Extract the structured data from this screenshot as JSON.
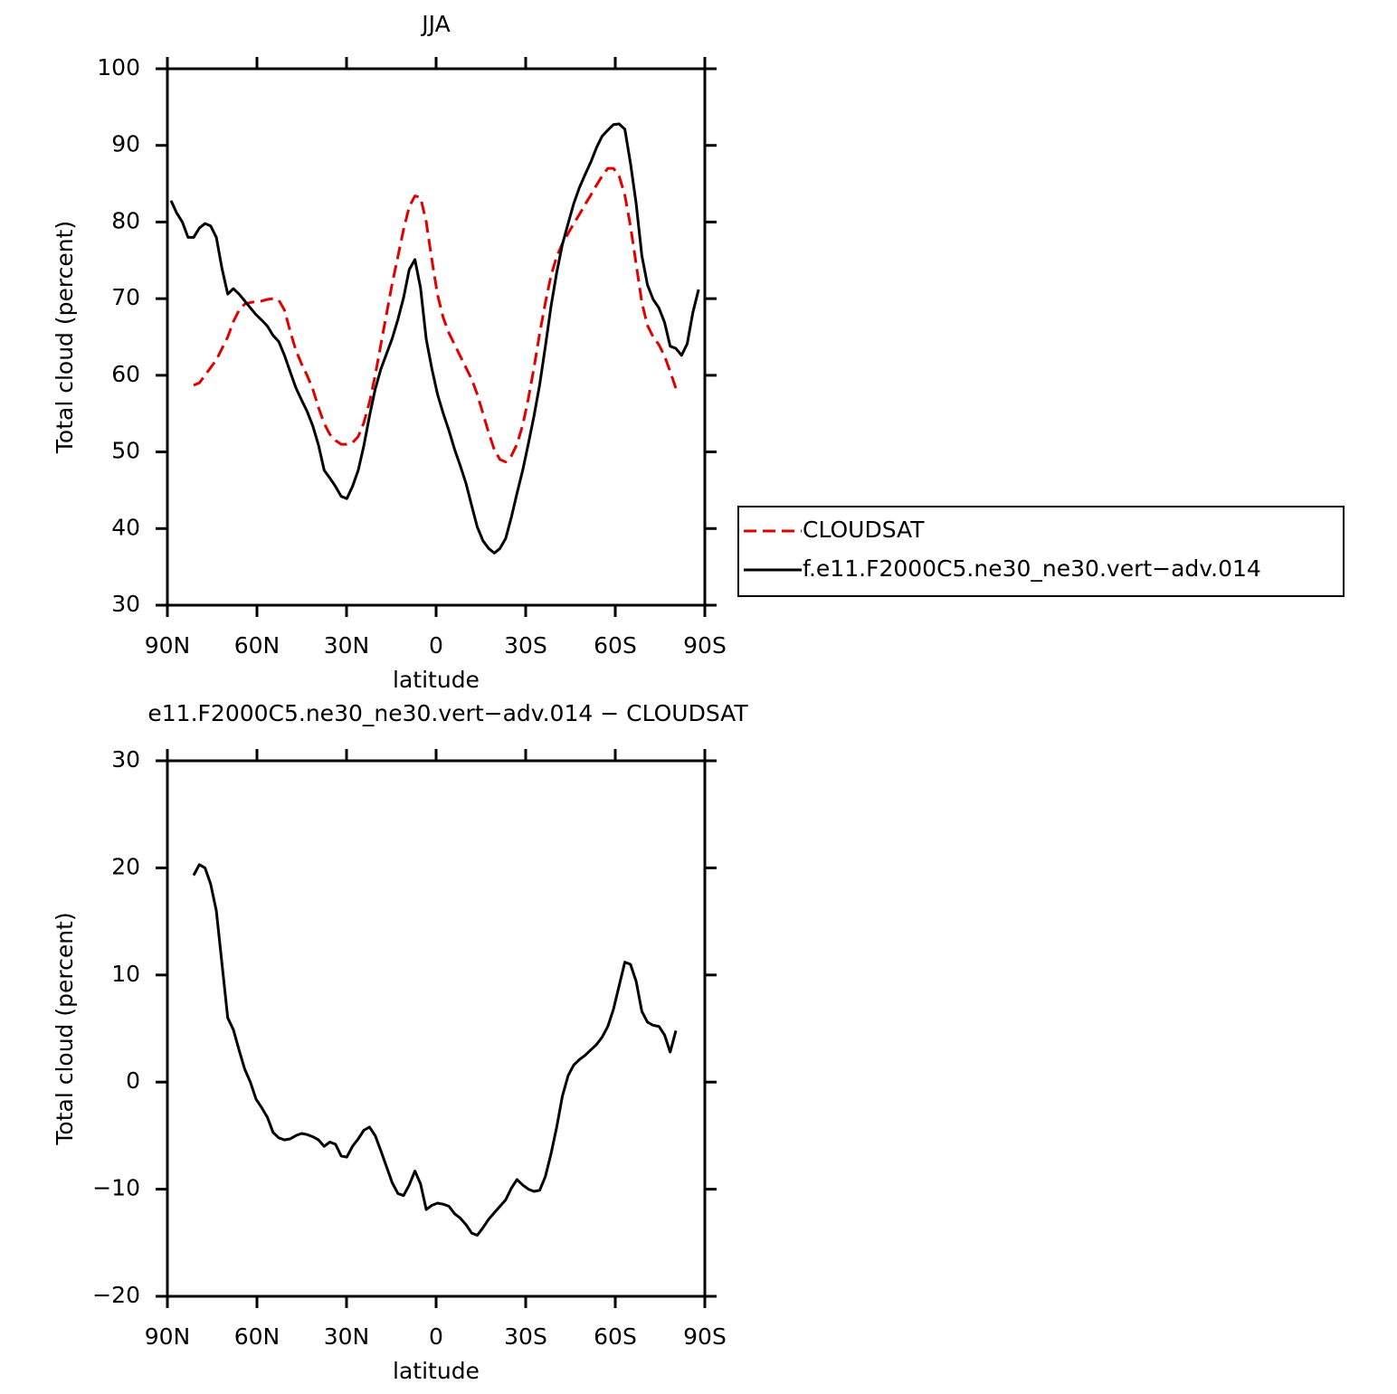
{
  "chart_data": [
    {
      "type": "line",
      "title": "JJA",
      "xlabel": "latitude",
      "ylabel": "Total cloud (percent)",
      "x": [
        88.8,
        86.9,
        85.0,
        83.1,
        81.2,
        79.3,
        77.4,
        75.5,
        73.6,
        71.7,
        69.8,
        67.9,
        66.0,
        64.1,
        62.2,
        60.3,
        58.4,
        56.5,
        54.6,
        52.7,
        50.8,
        48.9,
        47.0,
        45.1,
        43.2,
        41.3,
        39.4,
        37.5,
        35.6,
        33.7,
        31.8,
        29.9,
        28.0,
        26.1,
        24.2,
        22.3,
        20.4,
        18.5,
        16.6,
        14.7,
        12.8,
        10.9,
        9.0,
        7.1,
        5.2,
        3.3,
        1.4,
        -0.5,
        -2.4,
        -4.3,
        -6.2,
        -8.1,
        -10.0,
        -11.9,
        -13.8,
        -15.7,
        -17.6,
        -19.5,
        -21.4,
        -23.3,
        -25.2,
        -27.1,
        -29.0,
        -30.9,
        -32.8,
        -34.7,
        -36.6,
        -38.5,
        -40.4,
        -42.3,
        -44.2,
        -46.1,
        -48.0,
        -49.9,
        -51.8,
        -53.7,
        -55.6,
        -57.5,
        -59.4,
        -61.3,
        -63.2,
        -65.1,
        -67.0,
        -68.9,
        -70.8,
        -72.7,
        -74.6,
        -76.5,
        -78.4,
        -80.3,
        -82.2,
        -84.1,
        -86.0,
        -87.9
      ],
      "series": [
        {
          "name": "CLOUDSAT",
          "color": "#e00000",
          "dashed": true,
          "values": [
            null,
            null,
            null,
            null,
            58.7,
            59.0,
            60.0,
            61.0,
            62.0,
            63.5,
            65.0,
            67.0,
            68.5,
            69.3,
            69.5,
            69.6,
            69.7,
            69.9,
            70.0,
            69.8,
            68.5,
            65.8,
            63.3,
            61.5,
            60.0,
            58.2,
            55.8,
            53.7,
            52.3,
            51.5,
            51.0,
            51.0,
            51.2,
            52.0,
            53.8,
            56.5,
            60.0,
            64.0,
            68.0,
            72.0,
            75.5,
            79.0,
            82.0,
            83.4,
            83.2,
            80.0,
            75.0,
            70.5,
            67.5,
            65.5,
            64.0,
            62.5,
            61.0,
            59.5,
            57.5,
            55.0,
            52.5,
            50.3,
            49.0,
            48.7,
            49.5,
            51.0,
            53.5,
            57.0,
            61.0,
            65.5,
            69.5,
            73.0,
            75.5,
            77.2,
            78.5,
            79.8,
            81.0,
            82.3,
            83.5,
            84.8,
            86.0,
            87.0,
            87.0,
            86.0,
            83.5,
            79.5,
            74.5,
            69.5,
            66.5,
            65.0,
            64.0,
            62.5,
            60.5,
            58.3,
            null,
            null,
            null,
            null
          ]
        },
        {
          "name": "f.e11.F2000C5.ne30_ne30.vert−adv.014",
          "color": "#000000",
          "dashed": false,
          "values": [
            82.8,
            81.2,
            80.0,
            78.0,
            78.0,
            79.2,
            79.8,
            79.5,
            78.0,
            73.9,
            70.6,
            71.3,
            70.6,
            69.7,
            68.8,
            67.9,
            67.2,
            66.4,
            65.2,
            64.4,
            62.6,
            60.5,
            58.4,
            56.8,
            55.3,
            53.4,
            50.9,
            47.6,
            46.6,
            45.5,
            44.2,
            43.9,
            45.5,
            47.6,
            50.8,
            54.7,
            58.2,
            60.8,
            62.8,
            64.8,
            67.3,
            70.1,
            73.8,
            75.1,
            71.4,
            64.7,
            60.8,
            57.5,
            55.0,
            52.8,
            50.3,
            48.2,
            45.9,
            43.0,
            40.2,
            38.4,
            37.4,
            36.8,
            37.4,
            38.7,
            41.5,
            44.6,
            47.6,
            51.1,
            54.7,
            58.8,
            63.8,
            69.0,
            73.4,
            77.1,
            79.8,
            82.4,
            84.5,
            86.2,
            87.8,
            89.7,
            91.2,
            92.0,
            92.7,
            92.8,
            92.1,
            87.7,
            82.4,
            75.6,
            71.8,
            69.9,
            68.8,
            66.9,
            63.8,
            63.5,
            62.6,
            64.1,
            68.2,
            71.2
          ]
        }
      ],
      "xlim": [
        90,
        -90
      ],
      "xticks": [
        {
          "value": 90,
          "label": "90N"
        },
        {
          "value": 60,
          "label": "60N"
        },
        {
          "value": 30,
          "label": "30N"
        },
        0,
        {
          "value": -30,
          "label": "30S"
        },
        {
          "value": -60,
          "label": "60S"
        },
        {
          "value": -90,
          "label": "90S"
        }
      ],
      "ylim": [
        30,
        100
      ],
      "yticks": [
        30,
        40,
        50,
        60,
        70,
        80,
        90,
        100
      ],
      "legend": "right"
    },
    {
      "type": "line",
      "title": "e11.F2000C5.ne30_ne30.vert−adv.014 − CLOUDSAT",
      "xlabel": "latitude",
      "ylabel": "Total cloud (percent)",
      "x": [
        88.8,
        86.9,
        85.0,
        83.1,
        81.2,
        79.3,
        77.4,
        75.5,
        73.6,
        71.7,
        69.8,
        67.9,
        66.0,
        64.1,
        62.2,
        60.3,
        58.4,
        56.5,
        54.6,
        52.7,
        50.8,
        48.9,
        47.0,
        45.1,
        43.2,
        41.3,
        39.4,
        37.5,
        35.6,
        33.7,
        31.8,
        29.9,
        28.0,
        26.1,
        24.2,
        22.3,
        20.4,
        18.5,
        16.6,
        14.7,
        12.8,
        10.9,
        9.0,
        7.1,
        5.2,
        3.3,
        1.4,
        -0.5,
        -2.4,
        -4.3,
        -6.2,
        -8.1,
        -10.0,
        -11.9,
        -13.8,
        -15.7,
        -17.6,
        -19.5,
        -21.4,
        -23.3,
        -25.2,
        -27.1,
        -29.0,
        -30.9,
        -32.8,
        -34.7,
        -36.6,
        -38.5,
        -40.4,
        -42.3,
        -44.2,
        -46.1,
        -48.0,
        -49.9,
        -51.8,
        -53.7,
        -55.6,
        -57.5,
        -59.4,
        -61.3,
        -63.2,
        -65.1,
        -67.0,
        -68.9,
        -70.8,
        -72.7,
        -74.6,
        -76.5,
        -78.4,
        -80.3,
        -82.2,
        -84.1,
        -86.0,
        -87.9
      ],
      "series": [
        {
          "color": "#000000",
          "dashed": false,
          "values": [
            null,
            null,
            null,
            null,
            19.3,
            20.3,
            20.0,
            18.5,
            16.0,
            11.0,
            6.0,
            4.9,
            3.0,
            1.2,
            0.0,
            -1.6,
            -2.4,
            -3.3,
            -4.7,
            -5.2,
            -5.4,
            -5.3,
            -5.0,
            -4.8,
            -4.9,
            -5.1,
            -5.4,
            -6.0,
            -5.6,
            -5.8,
            -6.9,
            -7.0,
            -6.0,
            -5.3,
            -4.5,
            -4.2,
            -5.0,
            -6.4,
            -7.9,
            -9.4,
            -10.4,
            -10.6,
            -9.6,
            -8.3,
            -9.5,
            -11.9,
            -11.5,
            -11.3,
            -11.4,
            -11.6,
            -12.3,
            -12.7,
            -13.3,
            -14.1,
            -14.3,
            -13.6,
            -12.8,
            -12.2,
            -11.6,
            -11.0,
            -9.9,
            -9.1,
            -9.6,
            -10.0,
            -10.2,
            -10.1,
            -8.8,
            -6.7,
            -4.2,
            -1.3,
            0.6,
            1.6,
            2.1,
            2.5,
            3.0,
            3.5,
            4.2,
            5.2,
            6.8,
            9.0,
            11.2,
            11.0,
            9.4,
            6.6,
            5.6,
            5.3,
            5.2,
            4.4,
            2.8,
            4.8,
            null,
            null,
            null,
            null
          ]
        }
      ],
      "xlim": [
        90,
        -90
      ],
      "xticks": [
        {
          "value": 90,
          "label": "90N"
        },
        {
          "value": 60,
          "label": "60N"
        },
        {
          "value": 30,
          "label": "30N"
        },
        0,
        {
          "value": -30,
          "label": "30S"
        },
        {
          "value": -60,
          "label": "60S"
        },
        {
          "value": -90,
          "label": "90S"
        }
      ],
      "ylim": [
        -20,
        30
      ],
      "yticks": [
        {
          "value": -20,
          "label": "−20"
        },
        {
          "value": -10,
          "label": "−10"
        },
        0,
        10,
        20,
        30
      ]
    }
  ]
}
